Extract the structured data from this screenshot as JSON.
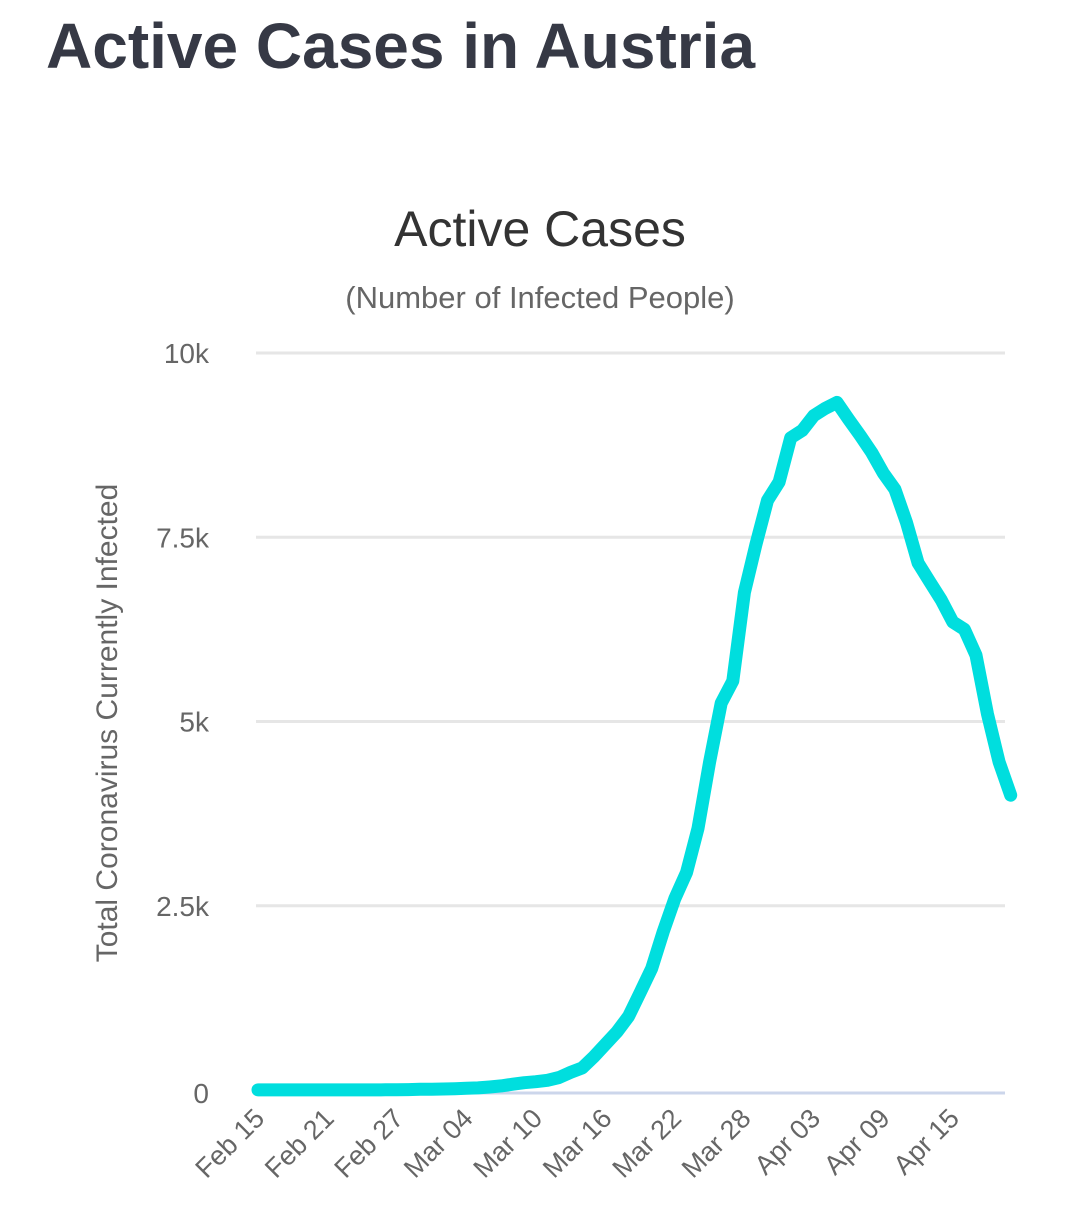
{
  "page": {
    "title": "Active Cases in Austria"
  },
  "colors": {
    "line": "#00dede",
    "grid": "#e6e6e6",
    "axis": "#ccd6eb",
    "title": "#363945",
    "text": "#666666"
  },
  "chart_data": {
    "type": "line",
    "title": "Active Cases",
    "subtitle": "(Number of Infected People)",
    "xlabel": "",
    "ylabel": "Total Coronavirus Currently Infected",
    "ylim": [
      0,
      10000
    ],
    "yticks": [
      0,
      2500,
      5000,
      7500,
      10000
    ],
    "ytick_labels": [
      "0",
      "2.5k",
      "5k",
      "7.5k",
      "10k"
    ],
    "xtick_labels": [
      "Feb 15",
      "Feb 21",
      "Feb 27",
      "Mar 04",
      "Mar 10",
      "Mar 16",
      "Mar 22",
      "Mar 28",
      "Apr 03",
      "Apr 09",
      "Apr 15"
    ],
    "xtick_interval_days": 6,
    "grid": true,
    "legend": "none",
    "series": [
      {
        "name": "Currently Infected",
        "x_start": "Feb 15",
        "x_end": "Apr 19",
        "values": [
          2,
          2,
          2,
          2,
          2,
          2,
          2,
          2,
          2,
          2,
          2,
          3,
          3,
          5,
          9,
          10,
          14,
          18,
          24,
          29,
          41,
          55,
          79,
          99,
          112,
          131,
          169,
          240,
          300,
          450,
          620,
          790,
          1000,
          1320,
          1650,
          2150,
          2600,
          2950,
          3550,
          4450,
          5250,
          5550,
          6750,
          7400,
          8000,
          8250,
          8850,
          8950,
          9150,
          9250,
          9330,
          9100,
          8880,
          8650,
          8370,
          8150,
          7700,
          7150,
          6900,
          6650,
          6350,
          6250,
          5900,
          5100,
          4450,
          4000
        ]
      }
    ]
  }
}
